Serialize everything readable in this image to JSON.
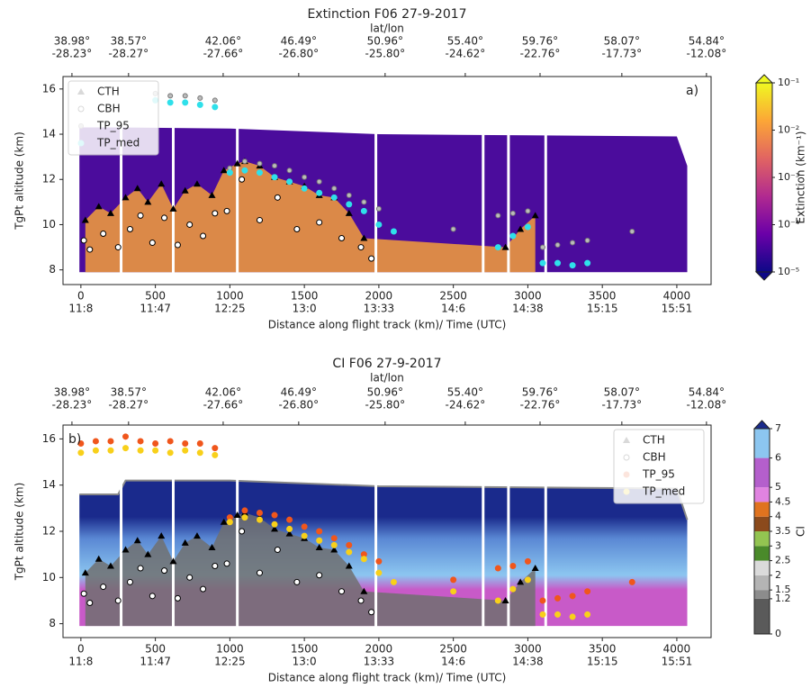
{
  "chart_data": [
    {
      "type": "scatter",
      "title": "Extinction F06  27-9-2017",
      "panel_label": "a)",
      "x2label": "lat/lon",
      "xlabel": "Distance along flight track (km)/ Time (UTC)",
      "ylabel": "TgPt altitude (km)",
      "xlim": [
        -120,
        4230
      ],
      "ylim": [
        7.35,
        16.55
      ],
      "xticks": [
        0,
        500,
        1000,
        1500,
        2000,
        2500,
        3000,
        3500,
        4000
      ],
      "xtick_times": [
        "11:8",
        "11:47",
        "12:25",
        "13:0",
        "13:33",
        "14:6",
        "14:38",
        "15:15",
        "15:51"
      ],
      "yticks": [
        8,
        10,
        12,
        14,
        16
      ],
      "x2ticks": [
        {
          "value": -60,
          "label": "38.98°"
        },
        {
          "value": 320,
          "label": "38.57°"
        },
        {
          "value": 955,
          "label": "42.06°"
        },
        {
          "value": 1462,
          "label": "46.49°"
        },
        {
          "value": 2042,
          "label": "50.96°"
        },
        {
          "value": 2580,
          "label": "55.40°"
        },
        {
          "value": 3082,
          "label": "59.76°"
        },
        {
          "value": 3631,
          "label": "58.07°"
        },
        {
          "value": 4199,
          "label": "54.84°"
        }
      ],
      "x2tick_lower": [
        "-28.23°",
        "-28.27°",
        "-27.66°",
        "-26.80°",
        "-25.80°",
        "-24.62°",
        "-22.76°",
        "-17.73°",
        "-12.08°"
      ],
      "legend": "upper left",
      "curtain": {
        "x": [
          -10,
          260,
          1000,
          2000,
          3000,
          4000,
          4070
        ],
        "top": [
          14.3,
          14.3,
          14.25,
          14.0,
          13.95,
          13.9,
          12.6
        ],
        "bottom": 7.9,
        "color": "#4b0c9c",
        "cloud_color": "#f5a03a",
        "line": false
      },
      "gaps": [
        270,
        620,
        1050,
        1980,
        2700,
        2870,
        3120
      ],
      "colorbar": {
        "label": "Extinction (km⁻¹)",
        "log": true,
        "clim": [
          1e-05,
          0.1
        ],
        "colormap": [
          "#0d0887",
          "#6a00a8",
          "#b12a90",
          "#e16462",
          "#fca636",
          "#f0f921"
        ],
        "ticks": [
          {
            "value": 0.1,
            "label": "10⁻¹"
          },
          {
            "value": 0.01,
            "label": "10⁻²"
          },
          {
            "value": 0.001,
            "label": "10⁻³"
          },
          {
            "value": 0.0001,
            "label": "10⁻⁴"
          },
          {
            "value": 1e-05,
            "label": "10⁻⁵"
          }
        ]
      },
      "series": [
        {
          "name": "CTH",
          "marker": "triangle",
          "color": "#000000",
          "edge": "#000000",
          "x": [
            30,
            120,
            200,
            300,
            380,
            450,
            540,
            620,
            700,
            780,
            880,
            960,
            1050,
            1100,
            1200,
            1300,
            1400,
            1500,
            1600,
            1700,
            1800,
            1900,
            2850,
            2950,
            3050
          ],
          "y": [
            10.2,
            10.8,
            10.5,
            11.2,
            11.6,
            11.0,
            11.8,
            10.7,
            11.5,
            11.8,
            11.3,
            12.4,
            12.7,
            12.8,
            12.6,
            12.1,
            11.9,
            11.7,
            11.3,
            11.2,
            10.5,
            9.4,
            9.0,
            9.8,
            10.4
          ]
        },
        {
          "name": "CBH",
          "marker": "circle",
          "color": "#ffffff",
          "edge": "#000000",
          "x": [
            20,
            60,
            150,
            250,
            330,
            400,
            480,
            560,
            650,
            730,
            820,
            900,
            980,
            1080,
            1200,
            1320,
            1450,
            1600,
            1750,
            1880,
            1950
          ],
          "y": [
            9.3,
            8.9,
            9.6,
            9.0,
            9.8,
            10.4,
            9.2,
            10.3,
            9.1,
            10.0,
            9.5,
            10.5,
            10.6,
            12.0,
            10.2,
            11.2,
            9.8,
            10.1,
            9.4,
            9.0,
            8.5
          ]
        },
        {
          "name": "TP_95",
          "marker": "small",
          "color": "#bbbbbb",
          "edge": "#777777",
          "x": [
            500,
            600,
            700,
            800,
            900,
            1000,
            1100,
            1200,
            1300,
            1400,
            1500,
            1600,
            1700,
            1800,
            1900,
            2000,
            2500,
            2800,
            2900,
            3000,
            3100,
            3200,
            3300,
            3400,
            3700
          ],
          "y": [
            15.8,
            15.7,
            15.7,
            15.6,
            15.5,
            12.5,
            12.8,
            12.7,
            12.6,
            12.4,
            12.1,
            11.9,
            11.6,
            11.3,
            11.0,
            10.7,
            9.8,
            10.4,
            10.5,
            10.6,
            9.0,
            9.1,
            9.2,
            9.3,
            9.7
          ]
        },
        {
          "name": "TP_med",
          "marker": "circle",
          "color": "#2fe0ea",
          "edge": "#2fe0ea",
          "x": [
            500,
            600,
            700,
            800,
            900,
            1000,
            1100,
            1200,
            1300,
            1400,
            1500,
            1600,
            1700,
            1800,
            1900,
            2000,
            2100,
            2800,
            2900,
            3000,
            3100,
            3200,
            3300,
            3400
          ],
          "y": [
            15.5,
            15.4,
            15.4,
            15.3,
            15.2,
            12.3,
            12.4,
            12.3,
            12.1,
            11.9,
            11.6,
            11.4,
            11.2,
            10.9,
            10.6,
            10.0,
            9.7,
            9.0,
            9.5,
            9.9,
            8.3,
            8.3,
            8.2,
            8.3
          ]
        }
      ]
    },
    {
      "type": "scatter",
      "title": "CI F06  27-9-2017",
      "panel_label": "b)",
      "x2label": "lat/lon",
      "xlabel": "Distance along flight track (km)/ Time (UTC)",
      "ylabel": "TgPt altitude (km)",
      "xlim": [
        -120,
        4230
      ],
      "ylim": [
        7.4,
        16.6
      ],
      "xticks": [
        0,
        500,
        1000,
        1500,
        2000,
        2500,
        3000,
        3500,
        4000
      ],
      "xtick_times": [
        "11:8",
        "11:47",
        "12:25",
        "13:0",
        "13:33",
        "14:6",
        "14:38",
        "15:15",
        "15:51"
      ],
      "yticks": [
        8,
        10,
        12,
        14,
        16
      ],
      "x2ticks": [
        {
          "value": -60,
          "label": "38.98°"
        },
        {
          "value": 320,
          "label": "38.57°"
        },
        {
          "value": 955,
          "label": "42.06°"
        },
        {
          "value": 1462,
          "label": "46.49°"
        },
        {
          "value": 2042,
          "label": "50.96°"
        },
        {
          "value": 2580,
          "label": "55.40°"
        },
        {
          "value": 3082,
          "label": "59.76°"
        },
        {
          "value": 3631,
          "label": "58.07°"
        },
        {
          "value": 4199,
          "label": "54.84°"
        }
      ],
      "x2tick_lower": [
        "-28.23°",
        "-28.27°",
        "-27.66°",
        "-26.80°",
        "-25.80°",
        "-24.62°",
        "-22.76°",
        "-17.73°",
        "-12.08°"
      ],
      "legend": "upper right",
      "curtain": {
        "x": [
          -10,
          250,
          300,
          1000,
          2000,
          3000,
          4000,
          4070
        ],
        "top": [
          13.6,
          13.6,
          14.2,
          14.2,
          13.95,
          13.9,
          13.85,
          12.5
        ],
        "bottom": 7.9,
        "color": "#1a2a8c",
        "cloud_color": "#707070",
        "line": true
      },
      "gaps": [
        270,
        620,
        1050,
        1980,
        2700,
        2870,
        3120
      ],
      "colorbar": {
        "label": "CI",
        "log": false,
        "clim": [
          0,
          7
        ],
        "ticks": [
          0,
          1.2,
          1.5,
          2,
          2.5,
          3,
          3.5,
          4,
          4.5,
          5,
          6,
          7
        ],
        "colors": [
          "#5a5a5a",
          "#8c8c8c",
          "#b4b4b4",
          "#dadada",
          "#4a8a2a",
          "#93c451",
          "#8b4a1c",
          "#e0731f",
          "#e083e0",
          "#b45fcc",
          "#8cc6f0",
          "#4d7fcf"
        ]
      },
      "series": [
        {
          "name": "CTH",
          "marker": "triangle",
          "color": "#000000",
          "edge": "#000000",
          "x": [
            30,
            120,
            200,
            300,
            380,
            450,
            540,
            620,
            700,
            780,
            880,
            960,
            1050,
            1100,
            1200,
            1300,
            1400,
            1500,
            1600,
            1700,
            1800,
            1900,
            2850,
            2950,
            3050
          ],
          "y": [
            10.2,
            10.8,
            10.5,
            11.2,
            11.6,
            11.0,
            11.8,
            10.7,
            11.5,
            11.8,
            11.3,
            12.4,
            12.7,
            12.8,
            12.6,
            12.1,
            11.9,
            11.7,
            11.3,
            11.2,
            10.5,
            9.4,
            9.0,
            9.8,
            10.4
          ]
        },
        {
          "name": "CBH",
          "marker": "circle",
          "color": "#ffffff",
          "edge": "#000000",
          "x": [
            20,
            60,
            150,
            250,
            330,
            400,
            480,
            560,
            650,
            730,
            820,
            900,
            980,
            1080,
            1200,
            1320,
            1450,
            1600,
            1750,
            1880,
            1950
          ],
          "y": [
            9.3,
            8.9,
            9.6,
            9.0,
            9.8,
            10.4,
            9.2,
            10.3,
            9.1,
            10.0,
            9.5,
            10.5,
            10.6,
            12.0,
            10.2,
            11.2,
            9.8,
            10.1,
            9.4,
            9.0,
            8.5
          ]
        },
        {
          "name": "TP_95",
          "marker": "circle",
          "color": "#f0561c",
          "edge": "#f0561c",
          "x": [
            0,
            100,
            200,
            300,
            400,
            500,
            600,
            700,
            800,
            900,
            1000,
            1100,
            1200,
            1300,
            1400,
            1500,
            1600,
            1700,
            1800,
            1900,
            2000,
            2500,
            2800,
            2900,
            3000,
            3100,
            3200,
            3300,
            3400,
            3700
          ],
          "y": [
            15.8,
            15.9,
            15.9,
            16.1,
            15.9,
            15.8,
            15.9,
            15.8,
            15.8,
            15.6,
            12.6,
            12.9,
            12.8,
            12.7,
            12.5,
            12.2,
            12.0,
            11.7,
            11.4,
            11.0,
            10.7,
            9.9,
            10.4,
            10.5,
            10.7,
            9.0,
            9.1,
            9.2,
            9.4,
            9.8
          ]
        },
        {
          "name": "TP_med",
          "marker": "circle",
          "color": "#f8d01a",
          "edge": "#f8d01a",
          "x": [
            0,
            100,
            200,
            300,
            400,
            500,
            600,
            700,
            800,
            900,
            1000,
            1100,
            1200,
            1300,
            1400,
            1500,
            1600,
            1700,
            1800,
            1900,
            2000,
            2100,
            2500,
            2800,
            2900,
            3000,
            3100,
            3200,
            3300,
            3400
          ],
          "y": [
            15.4,
            15.5,
            15.5,
            15.6,
            15.5,
            15.5,
            15.4,
            15.5,
            15.4,
            15.3,
            12.4,
            12.6,
            12.5,
            12.3,
            12.1,
            11.8,
            11.6,
            11.4,
            11.1,
            10.8,
            10.2,
            9.8,
            9.4,
            9.0,
            9.5,
            9.9,
            8.4,
            8.4,
            8.3,
            8.4
          ]
        }
      ]
    }
  ]
}
